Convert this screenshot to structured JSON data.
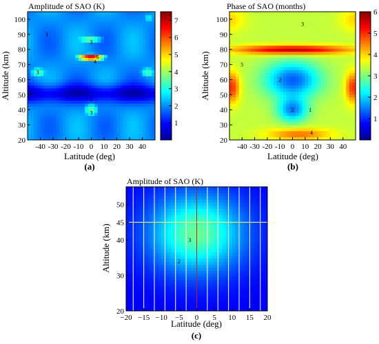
{
  "chart_data": [
    {
      "type": "heatmap",
      "panel_label": "(a)",
      "title": "Amplitude of SAO (K)",
      "xlabel": "Latitude (deg)",
      "ylabel": "Altitude (km)",
      "xlim": [
        -50,
        50
      ],
      "ylim": [
        20,
        105
      ],
      "xticks": [
        -40,
        -30,
        -20,
        -10,
        0,
        10,
        20,
        30,
        40
      ],
      "xticklabels": [
        "-40",
        "-30",
        "-20",
        "-10",
        "0",
        "10",
        "20",
        "30",
        "40"
      ],
      "yticks": [
        20,
        30,
        40,
        50,
        60,
        70,
        80,
        90,
        100
      ],
      "colorbar": {
        "min": 0,
        "max": 7.5,
        "ticks": [
          1,
          2,
          3,
          4,
          5,
          6,
          7
        ],
        "colormap": "jet"
      },
      "contour_labels": [
        {
          "text": "3",
          "lat": -35,
          "alt": 90
        },
        {
          "text": "3",
          "lat": 0,
          "alt": 85
        },
        {
          "text": "5",
          "lat": 5,
          "alt": 75
        },
        {
          "text": "4",
          "lat": 3,
          "alt": 72
        },
        {
          "text": "3",
          "lat": -42,
          "alt": 65
        },
        {
          "text": "1",
          "lat": 0,
          "alt": 47
        },
        {
          "text": "3",
          "lat": 0,
          "alt": 38
        }
      ],
      "features": [
        {
          "lat": 0,
          "alt": 75,
          "amplitude": 7.2,
          "width_deg": 12,
          "width_km": 2.5
        },
        {
          "lat": 0,
          "alt": 87,
          "amplitude": 3.5,
          "width_deg": 14,
          "width_km": 4
        },
        {
          "lat": -42,
          "alt": 65,
          "amplitude": 3.4,
          "width_deg": 9,
          "width_km": 5
        },
        {
          "lat": 44,
          "alt": 65,
          "amplitude": 3.4,
          "width_deg": 8,
          "width_km": 5
        },
        {
          "lat": 0,
          "alt": 40,
          "amplitude": 3.5,
          "width_deg": 8,
          "width_km": 6
        },
        {
          "lat": 45,
          "alt": 101,
          "amplitude": 3.0,
          "width_deg": 6,
          "width_km": 3
        }
      ],
      "background": {
        "amplitude": 2.0,
        "low_band_alt": 51,
        "low_band_amplitude": 0.6
      }
    },
    {
      "type": "heatmap",
      "panel_label": "(b)",
      "title": "Phase of SAO (months)",
      "xlabel": "Latitude (deg)",
      "ylabel": "Altitude (km)",
      "xlim": [
        -50,
        50
      ],
      "ylim": [
        20,
        105
      ],
      "xticks": [
        -40,
        -30,
        -20,
        -10,
        0,
        10,
        20,
        30,
        40
      ],
      "xticklabels": [
        "-40",
        "-30",
        "-20",
        "-10",
        "0",
        "10",
        "20",
        "30",
        "40"
      ],
      "yticks": [
        20,
        30,
        40,
        50,
        60,
        70,
        80,
        90,
        100
      ],
      "colorbar": {
        "min": 0,
        "max": 6,
        "ticks": [
          1,
          2,
          3,
          4,
          5,
          6
        ],
        "colormap": "jet"
      },
      "contour_labels": [
        {
          "text": "3",
          "lat": 8,
          "alt": 97
        },
        {
          "text": "5",
          "lat": -40,
          "alt": 70
        },
        {
          "text": "2",
          "lat": -10,
          "alt": 60
        },
        {
          "text": "2",
          "lat": 0,
          "alt": 40
        },
        {
          "text": "1",
          "lat": 14,
          "alt": 40
        },
        {
          "text": "4",
          "lat": 15,
          "alt": 25
        }
      ]
    },
    {
      "type": "heatmap",
      "panel_label": "(c)",
      "title": "Amplitude of SAO (K)",
      "xlabel": "Latitude (deg)",
      "ylabel": "Altitude (km)",
      "xlim": [
        -20,
        20
      ],
      "ylim": [
        20,
        55
      ],
      "xticks": [
        -20,
        -15,
        -10,
        -5,
        0,
        5,
        10,
        15,
        20
      ],
      "xticklabels": [
        "−20",
        "−15",
        "−10",
        "−5",
        "0",
        "5",
        "10",
        "15",
        "20"
      ],
      "yticks": [
        20,
        30,
        40,
        45,
        50
      ],
      "yticklabels": [
        "20",
        "30",
        "40",
        "45",
        "50"
      ],
      "peak": {
        "lat": 0,
        "alt": 42,
        "amplitude": 3.6
      },
      "contour_labels": [
        {
          "text": "3",
          "lat": -2,
          "alt": 40
        },
        {
          "text": "2",
          "lat": -5,
          "alt": 34
        }
      ],
      "vertical_lines_lat": [
        -18,
        -15,
        -12,
        -9,
        -6,
        -3,
        0,
        3,
        6,
        9,
        12,
        15,
        18
      ],
      "horizontal_line_alt": 45
    }
  ]
}
